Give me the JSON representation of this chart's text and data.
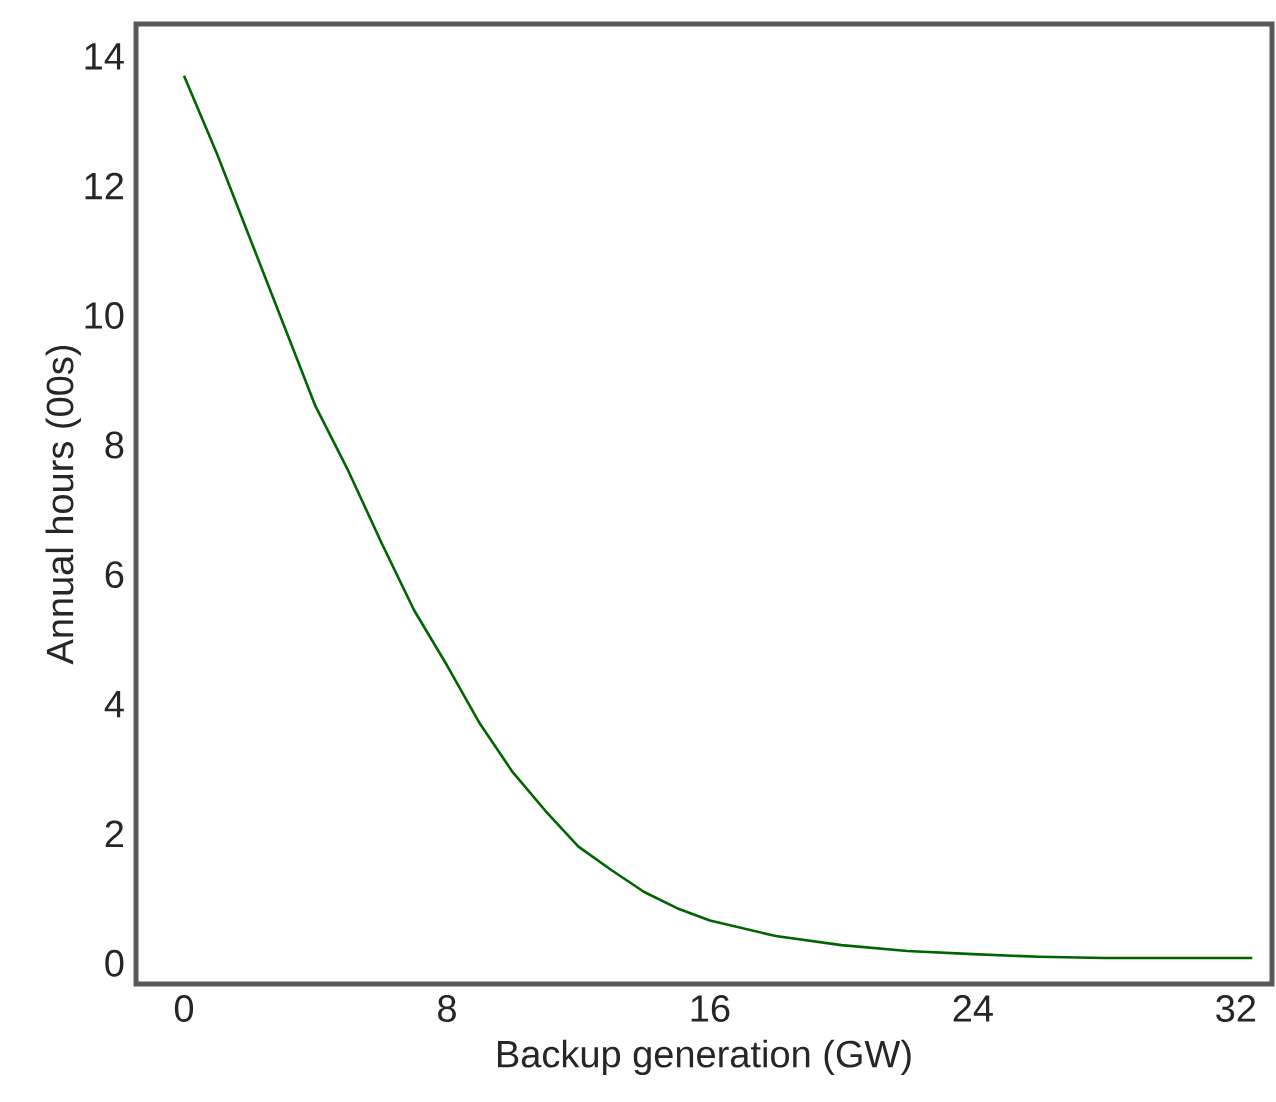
{
  "chart_data": {
    "type": "line",
    "xlabel": "Backup generation (GW)",
    "ylabel": "Annual hours (00s)",
    "xlim": [
      -1.46,
      33.1
    ],
    "ylim": [
      -0.32,
      14.5
    ],
    "xticks": [
      0,
      8,
      16,
      24,
      32
    ],
    "yticks": [
      0,
      2,
      4,
      6,
      8,
      10,
      12,
      14
    ],
    "grid": false,
    "series": [
      {
        "color": "#006400",
        "x": [
          0,
          1,
          2,
          3,
          4,
          5,
          6,
          7,
          8,
          9,
          10,
          11,
          12,
          13,
          14,
          15,
          16,
          18,
          20,
          22,
          24,
          26,
          28,
          30,
          32.5
        ],
        "values": [
          13.7,
          12.5,
          11.2,
          9.9,
          8.6,
          7.6,
          6.5,
          5.45,
          4.6,
          3.7,
          2.95,
          2.35,
          1.8,
          1.44,
          1.1,
          0.85,
          0.66,
          0.42,
          0.28,
          0.19,
          0.14,
          0.1,
          0.08,
          0.08,
          0.08
        ]
      }
    ]
  }
}
